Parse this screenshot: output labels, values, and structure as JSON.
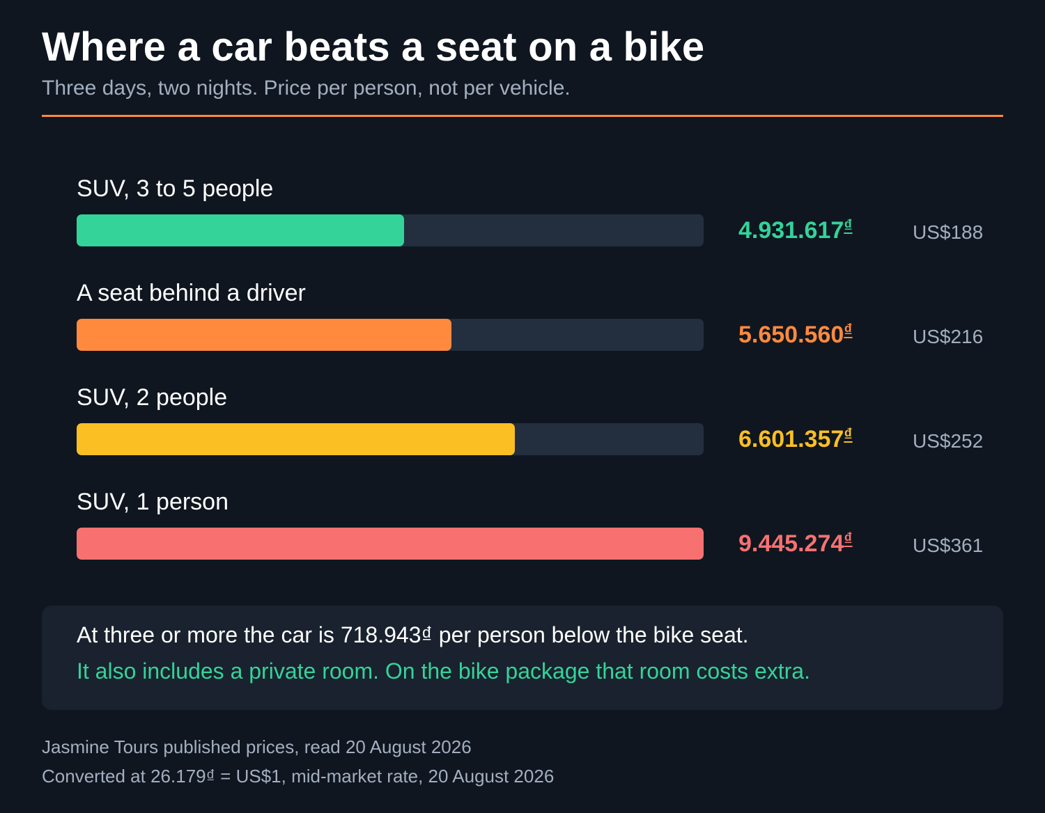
{
  "header": {
    "title": "Where a car beats a seat on a bike",
    "subtitle": "Three days, two nights. Price per person, not per vehicle."
  },
  "chart_data": {
    "type": "bar",
    "orientation": "horizontal",
    "categories": [
      "SUV, 3 to 5 people",
      "A seat behind a driver",
      "SUV, 2 people",
      "SUV, 1 person"
    ],
    "values": [
      4931617,
      5650560,
      6601357,
      9445274
    ],
    "vnd_labels": [
      "4.931.617",
      "5.650.560",
      "6.601.357",
      "9.445.274"
    ],
    "currency_symbol": "₫",
    "usd_labels": [
      "US$188",
      "US$216",
      "US$252",
      "US$361"
    ],
    "colors": [
      "#34d399",
      "#ff8a3d",
      "#fbbf24",
      "#f87171"
    ],
    "xlim": [
      0,
      9445274
    ],
    "grid": false,
    "legend": "none"
  },
  "note": {
    "line1": "At three or more the car is 718.943₫ per person below the bike seat.",
    "line2": "It also includes a private room. On the bike package that room costs extra."
  },
  "footer": {
    "source": "Jasmine Tours published prices, read 20 August 2026",
    "conversion": "Converted at 26.179₫ = US$1, mid-market rate, 20 August 2026"
  },
  "colors": {
    "background": "#0f1620",
    "accent": "#ff8a3d",
    "track": "#232f3f",
    "muted_text": "#a3afbf",
    "highlight_text": "#34d399"
  }
}
